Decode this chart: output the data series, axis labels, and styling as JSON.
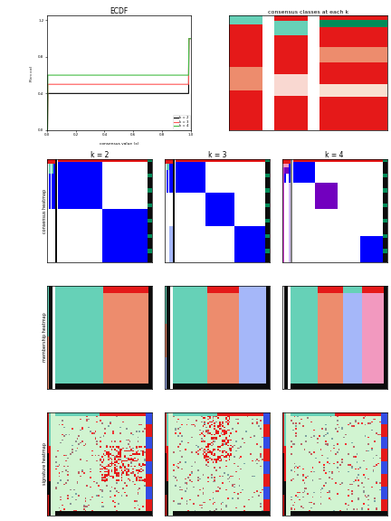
{
  "title_ecdf": "ECDF",
  "title_consensus": "consensus classes at each k",
  "k_labels": [
    "k = 2",
    "k = 3",
    "k = 4"
  ],
  "row_labels": [
    "consensus heatmap",
    "membership heatmap",
    "signature heatmap"
  ],
  "background": "#ffffff",
  "colors": {
    "blue": [
      0.0,
      0.0,
      1.0
    ],
    "white": [
      1.0,
      1.0,
      1.0
    ],
    "red": [
      0.9,
      0.1,
      0.1
    ],
    "teal": [
      0.4,
      0.82,
      0.72
    ],
    "salmon": [
      0.93,
      0.55,
      0.43
    ],
    "light_green": [
      0.82,
      0.96,
      0.82
    ],
    "purple": [
      0.45,
      0.0,
      0.75
    ],
    "light_purple": [
      0.82,
      0.72,
      0.96
    ],
    "pink": [
      0.95,
      0.6,
      0.75
    ],
    "magenta": [
      0.85,
      0.3,
      0.85
    ],
    "grey": [
      0.5,
      0.5,
      0.5
    ],
    "dark": [
      0.05,
      0.05,
      0.05
    ],
    "blue_annot": [
      0.2,
      0.3,
      0.9
    ],
    "light_blue": [
      0.65,
      0.72,
      0.98
    ],
    "dark_green": [
      0.0,
      0.55,
      0.35
    ]
  }
}
